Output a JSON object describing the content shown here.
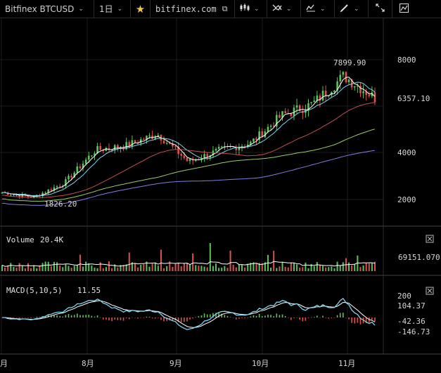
{
  "toolbar": {
    "symbol": "Bitfinex BTCUSD",
    "interval": "1日",
    "site": "bitfinex.com"
  },
  "price_axis": {
    "ticks": [
      "8000",
      "6357.10",
      "4000",
      "2000"
    ],
    "high_label": "7899.90",
    "low_label": "1826.20"
  },
  "volume_pane": {
    "title": "Volume",
    "value": "20.4K",
    "axis_label": "69151.070"
  },
  "macd_pane": {
    "title": "MACD(5,10,5)",
    "value": "11.55",
    "ticks": [
      "200",
      "104.37",
      "-42.36",
      "-146.73"
    ]
  },
  "time_axis": {
    "labels": [
      "月",
      "8月",
      "9月",
      "10月",
      "11月"
    ]
  },
  "colors": {
    "up": "#5ec15e",
    "down": "#d9534f",
    "ma_fast": "#ffffff",
    "ma_cyan": "#7fd4f0",
    "ma_red": "#c05050",
    "ma_green": "#9acd62",
    "ma_blue": "#7f7fe6",
    "macd_line": "#7fd4f0",
    "signal_line": "#ffffff"
  },
  "chart_data": {
    "type": "candlestick",
    "title": "Bitfinex BTCUSD",
    "price_range": [
      1500,
      8500
    ],
    "x_labels": [
      "月",
      "8月",
      "9月",
      "10月",
      "11月"
    ],
    "price_ticks": [
      2000,
      4000,
      6357.1,
      8000
    ],
    "close_series_approx": [
      {
        "date": "7月中",
        "close": 2300
      },
      {
        "date": "7月下",
        "close": 2100
      },
      {
        "date": "8月初",
        "close": 2700
      },
      {
        "date": "8月中",
        "close": 4100
      },
      {
        "date": "8月下",
        "close": 4300
      },
      {
        "date": "9月初",
        "close": 4800
      },
      {
        "date": "9月中",
        "close": 3600
      },
      {
        "date": "9月下",
        "close": 4100
      },
      {
        "date": "10月初",
        "close": 4400
      },
      {
        "date": "10月中",
        "close": 5600
      },
      {
        "date": "10月下",
        "close": 6100
      },
      {
        "date": "11月初",
        "close": 7300
      },
      {
        "date": "11月中",
        "close": 6357.1
      }
    ],
    "high": 7899.9,
    "low": 1826.2,
    "volume_last": 69151.07,
    "macd": {
      "params": "5,10,5",
      "value": 11.55,
      "ticks": [
        200,
        104.37,
        -42.36,
        -146.73
      ]
    }
  }
}
